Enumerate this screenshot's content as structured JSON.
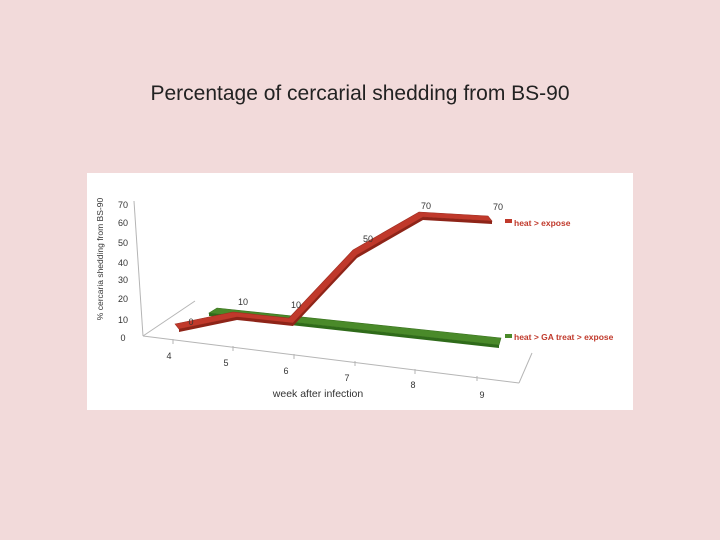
{
  "title": "Percentage of cercarial shedding from BS-90",
  "chart_data": {
    "type": "line",
    "subtype": "3d-ribbon",
    "title": "",
    "xlabel": "week after infection",
    "ylabel": "% cercaria shedding from BS-90",
    "x": [
      "4",
      "5",
      "6",
      "7",
      "8",
      "9"
    ],
    "y_ticks": [
      "0",
      "10",
      "20",
      "30",
      "40",
      "50",
      "60",
      "70"
    ],
    "ylim": [
      0,
      70
    ],
    "grid": false,
    "legend_position": "right",
    "series": [
      {
        "name": "heat > expose",
        "color": "#c0392b",
        "values": [
          0,
          10,
          10,
          50,
          70,
          70
        ],
        "data_labels": [
          "0",
          "10",
          "10",
          "50",
          "70",
          "70"
        ]
      },
      {
        "name": "heat > GA treat > expose",
        "color": "#4a8a2a",
        "values": [
          0,
          0,
          0,
          0,
          0,
          0
        ]
      }
    ]
  }
}
